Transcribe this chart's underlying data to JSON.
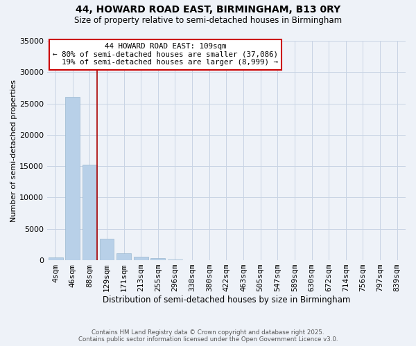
{
  "title_line1": "44, HOWARD ROAD EAST, BIRMINGHAM, B13 0RY",
  "title_line2": "Size of property relative to semi-detached houses in Birmingham",
  "xlabel": "Distribution of semi-detached houses by size in Birmingham",
  "ylabel": "Number of semi-detached properties",
  "footer_line1": "Contains HM Land Registry data © Crown copyright and database right 2025.",
  "footer_line2": "Contains public sector information licensed under the Open Government Licence v3.0.",
  "categories": [
    "4sqm",
    "46sqm",
    "88sqm",
    "129sqm",
    "171sqm",
    "213sqm",
    "255sqm",
    "296sqm",
    "338sqm",
    "380sqm",
    "422sqm",
    "463sqm",
    "505sqm",
    "547sqm",
    "589sqm",
    "630sqm",
    "672sqm",
    "714sqm",
    "756sqm",
    "797sqm",
    "839sqm"
  ],
  "values": [
    400,
    26100,
    15200,
    3400,
    1100,
    550,
    350,
    100,
    0,
    0,
    0,
    0,
    0,
    0,
    0,
    0,
    0,
    0,
    0,
    0,
    0
  ],
  "bar_color": "#b8d0e8",
  "bar_edgecolor": "#9ab8d0",
  "grid_color": "#c8d4e4",
  "background_color": "#eef2f8",
  "vline_color": "#aa0000",
  "annotation_text": "44 HOWARD ROAD EAST: 109sqm\n← 80% of semi-detached houses are smaller (37,086)\n  19% of semi-detached houses are larger (8,999) →",
  "annotation_box_color": "#ffffff",
  "annotation_box_edgecolor": "#cc0000",
  "ylim": [
    0,
    35000
  ],
  "yticks": [
    0,
    5000,
    10000,
    15000,
    20000,
    25000,
    30000,
    35000
  ],
  "vline_pos": 2.45
}
